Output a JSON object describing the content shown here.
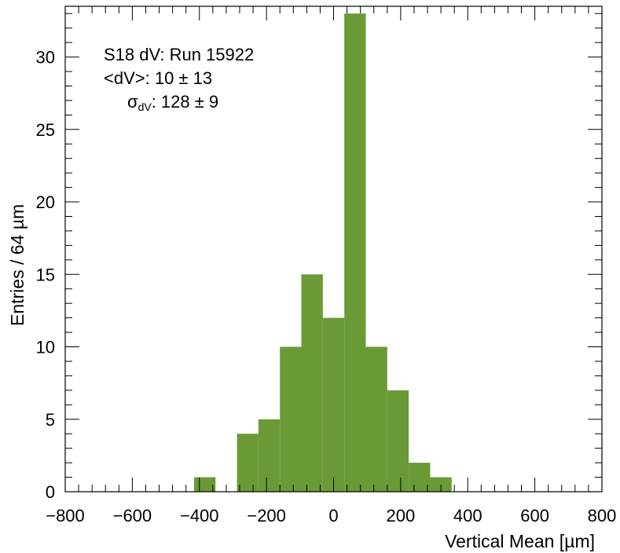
{
  "chart_data": {
    "type": "bar",
    "title": "",
    "xlabel": "Vertical Mean [µm]",
    "ylabel": "Entries / 64 µm",
    "xlim": [
      -800,
      800
    ],
    "ylim": [
      0,
      33.5
    ],
    "bin_width": 64,
    "x_ticks": [
      "−800",
      "−600",
      "−400",
      "−200",
      "0",
      "200",
      "400",
      "600",
      "800"
    ],
    "y_ticks": [
      "0",
      "5",
      "10",
      "15",
      "20",
      "25",
      "30"
    ],
    "bins": [
      {
        "x0": -416,
        "x1": -352,
        "value": 1
      },
      {
        "x0": -288,
        "x1": -224,
        "value": 4
      },
      {
        "x0": -224,
        "x1": -160,
        "value": 5
      },
      {
        "x0": -160,
        "x1": -96,
        "value": 10
      },
      {
        "x0": -96,
        "x1": -32,
        "value": 15
      },
      {
        "x0": -32,
        "x1": 32,
        "value": 12
      },
      {
        "x0": 32,
        "x1": 96,
        "value": 33
      },
      {
        "x0": 96,
        "x1": 160,
        "value": 10
      },
      {
        "x0": 160,
        "x1": 224,
        "value": 7
      },
      {
        "x0": 224,
        "x1": 288,
        "value": 2
      },
      {
        "x0": 288,
        "x1": 352,
        "value": 1
      }
    ],
    "bar_color": "#6a9a35",
    "annotations": {
      "line1": "S18 dV: Run 15922",
      "line2": "<dV>: 10 ± 13",
      "sigma_symbol": "σ",
      "sigma_sub": "dV",
      "sigma_value": ": 128 ± 9"
    }
  }
}
